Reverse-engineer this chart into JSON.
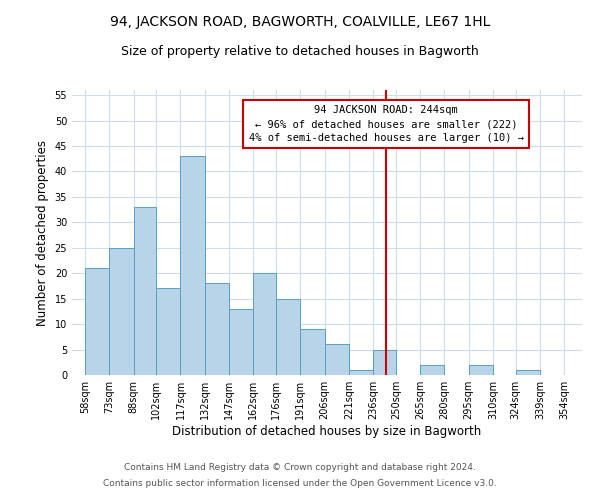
{
  "title": "94, JACKSON ROAD, BAGWORTH, COALVILLE, LE67 1HL",
  "subtitle": "Size of property relative to detached houses in Bagworth",
  "xlabel": "Distribution of detached houses by size in Bagworth",
  "ylabel": "Number of detached properties",
  "bar_left_edges": [
    58,
    73,
    88,
    102,
    117,
    132,
    147,
    162,
    176,
    191,
    206,
    221,
    236,
    250,
    265,
    280,
    295,
    310,
    324,
    339
  ],
  "bar_heights": [
    21,
    25,
    33,
    17,
    43,
    18,
    13,
    20,
    15,
    9,
    6,
    1,
    5,
    0,
    2,
    0,
    2,
    0,
    1,
    0
  ],
  "bar_widths": [
    15,
    15,
    14,
    15,
    15,
    15,
    15,
    14,
    15,
    15,
    15,
    15,
    14,
    15,
    15,
    15,
    15,
    14,
    15,
    15
  ],
  "tick_labels": [
    "58sqm",
    "73sqm",
    "88sqm",
    "102sqm",
    "117sqm",
    "132sqm",
    "147sqm",
    "162sqm",
    "176sqm",
    "191sqm",
    "206sqm",
    "221sqm",
    "236sqm",
    "250sqm",
    "265sqm",
    "280sqm",
    "295sqm",
    "310sqm",
    "324sqm",
    "339sqm",
    "354sqm"
  ],
  "tick_positions": [
    58,
    73,
    88,
    102,
    117,
    132,
    147,
    162,
    176,
    191,
    206,
    221,
    236,
    250,
    265,
    280,
    295,
    310,
    324,
    339,
    354
  ],
  "bar_color": "#b8d4e8",
  "bar_edge_color": "#5a9fc4",
  "vline_x": 244,
  "vline_color": "#cc0000",
  "ylim": [
    0,
    56
  ],
  "xlim": [
    50,
    365
  ],
  "annotation_title": "94 JACKSON ROAD: 244sqm",
  "annotation_line1": "← 96% of detached houses are smaller (222)",
  "annotation_line2": "4% of semi-detached houses are larger (10) →",
  "footer_line1": "Contains HM Land Registry data © Crown copyright and database right 2024.",
  "footer_line2": "Contains public sector information licensed under the Open Government Licence v3.0.",
  "background_color": "#ffffff",
  "grid_color": "#ccddee",
  "title_fontsize": 10,
  "subtitle_fontsize": 9,
  "axis_label_fontsize": 8.5,
  "tick_fontsize": 7,
  "annotation_fontsize": 7.5,
  "footer_fontsize": 6.5,
  "yticks": [
    0,
    5,
    10,
    15,
    20,
    25,
    30,
    35,
    40,
    45,
    50,
    55
  ]
}
